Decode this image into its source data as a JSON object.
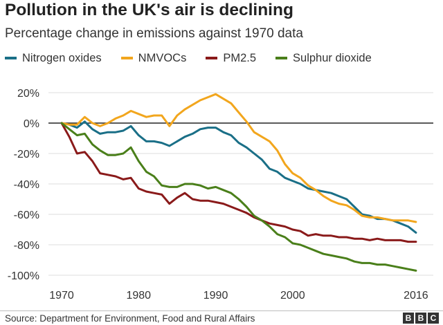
{
  "chart_data": {
    "type": "line",
    "title": "Pollution in the UK's air is declining",
    "subtitle": "Percentage change in emissions against 1970 data",
    "xlabel": "",
    "ylabel": "",
    "xlim": [
      1970,
      2017
    ],
    "ylim": [
      -105,
      25
    ],
    "y_ticks": [
      20,
      0,
      -20,
      -40,
      -60,
      -80,
      -100
    ],
    "y_tick_labels": [
      "20%",
      "0%",
      "-20%",
      "-40%",
      "-60%",
      "-80%",
      "-100%"
    ],
    "x_ticks": [
      1970,
      1980,
      1990,
      2000,
      2016
    ],
    "x_tick_labels": [
      "1970",
      "1980",
      "1990",
      "2000",
      "2016"
    ],
    "grid": "horizontal",
    "legend_position": "top",
    "x": [
      1970,
      1971,
      1972,
      1973,
      1974,
      1975,
      1976,
      1977,
      1978,
      1979,
      1980,
      1981,
      1982,
      1983,
      1984,
      1985,
      1986,
      1987,
      1988,
      1989,
      1990,
      1991,
      1992,
      1993,
      1994,
      1995,
      1996,
      1997,
      1998,
      1999,
      2000,
      2001,
      2002,
      2003,
      2004,
      2005,
      2006,
      2007,
      2008,
      2009,
      2010,
      2011,
      2012,
      2013,
      2014,
      2015,
      2016
    ],
    "series": [
      {
        "name": "Nitrogen oxides",
        "color": "#1a6f87",
        "values": [
          0,
          -1,
          -3,
          1,
          -4,
          -7,
          -6,
          -6,
          -5,
          -2,
          -8,
          -12,
          -12,
          -13,
          -15,
          -12,
          -9,
          -7,
          -4,
          -3,
          -3,
          -6,
          -8,
          -13,
          -16,
          -20,
          -24,
          -30,
          -32,
          -36,
          -38,
          -40,
          -43,
          -44,
          -45,
          -46,
          -48,
          -50,
          -55,
          -60,
          -61,
          -63,
          -63,
          -64,
          -66,
          -68,
          -72
        ]
      },
      {
        "name": "NMVOCs",
        "color": "#f2a61d",
        "values": [
          0,
          -1,
          -1,
          4,
          0,
          -2,
          0,
          3,
          5,
          8,
          6,
          4,
          5,
          5,
          -2,
          5,
          9,
          12,
          15,
          17,
          19,
          16,
          13,
          7,
          1,
          -6,
          -9,
          -12,
          -18,
          -27,
          -33,
          -36,
          -41,
          -44,
          -48,
          -51,
          -53,
          -54,
          -57,
          -61,
          -62,
          -62,
          -63,
          -64,
          -64,
          -64,
          -65
        ]
      },
      {
        "name": "PM2.5",
        "color": "#8a1a1a",
        "values": [
          0,
          -9,
          -20,
          -19,
          -25,
          -33,
          -34,
          -35,
          -37,
          -36,
          -43,
          -45,
          -46,
          -47,
          -53,
          -49,
          -46,
          -50,
          -51,
          -51,
          -52,
          -53,
          -55,
          -57,
          -59,
          -62,
          -64,
          -66,
          -67,
          -68,
          -70,
          -71,
          -74,
          -73,
          -74,
          -74,
          -75,
          -75,
          -76,
          -76,
          -77,
          -76,
          -77,
          -77,
          -77,
          -78,
          -78
        ]
      },
      {
        "name": "Sulphur dioxide",
        "color": "#4a7f1a",
        "values": [
          0,
          -4,
          -8,
          -7,
          -14,
          -18,
          -21,
          -21,
          -20,
          -16,
          -25,
          -32,
          -35,
          -41,
          -42,
          -42,
          -40,
          -40,
          -41,
          -43,
          -42,
          -44,
          -46,
          -50,
          -55,
          -61,
          -64,
          -68,
          -73,
          -75,
          -79,
          -80,
          -82,
          -84,
          -86,
          -87,
          -88,
          -89,
          -91,
          -92,
          -92,
          -93,
          -93,
          -94,
          -95,
          -96,
          -97
        ]
      }
    ]
  },
  "footer": {
    "source": "Source: Department for Environment, Food and Rural Affairs",
    "logo_letters": [
      "B",
      "B",
      "C"
    ]
  }
}
